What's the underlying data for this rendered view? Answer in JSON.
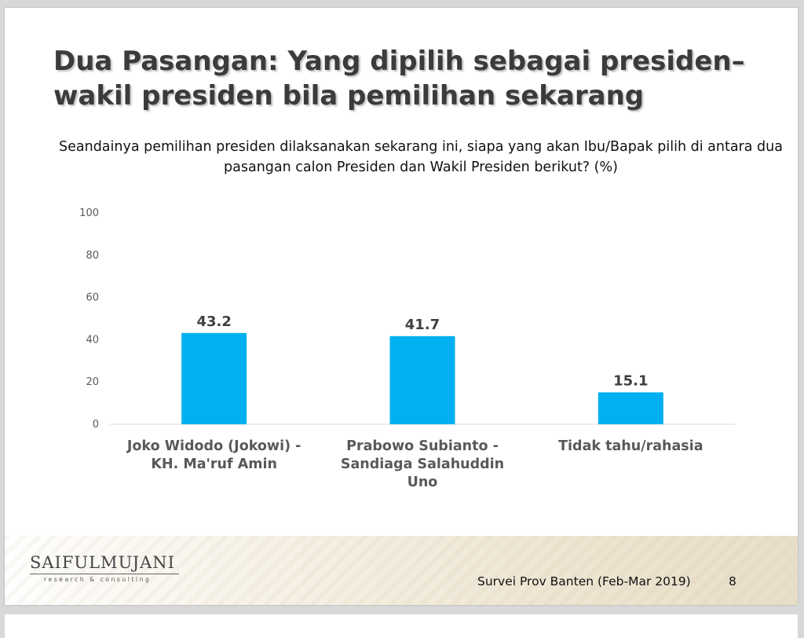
{
  "slide": {
    "title": "Dua Pasangan: Yang dipilih sebagai presiden–wakil presiden bila pemilihan sekarang",
    "question": "Seandainya pemilihan presiden dilaksanakan sekarang ini, siapa yang akan Ibu/Bapak pilih di antara dua pasangan calon Presiden dan Wakil Presiden berikut? (%)",
    "logo_main": "SAIFULMUJANI",
    "logo_sub": "research & consulting",
    "source": "Survei Prov Banten (Feb-Mar 2019)",
    "page_number": "8"
  },
  "chart_data": {
    "type": "bar",
    "title": "",
    "xlabel": "",
    "ylabel": "",
    "ylim": [
      0,
      100
    ],
    "yticks": [
      0,
      20,
      40,
      60,
      80,
      100
    ],
    "categories": [
      [
        "Joko Widodo (Jokowi) -",
        "KH. Ma'ruf Amin"
      ],
      [
        "Prabowo Subianto -",
        "Sandiaga Salahuddin",
        "Uno"
      ],
      [
        "Tidak tahu/rahasia"
      ]
    ],
    "values": [
      43.2,
      41.7,
      15.1
    ],
    "value_labels": [
      "43.2",
      "41.7",
      "15.1"
    ],
    "bar_color": "#00B0F0",
    "grid": false,
    "legend": "none"
  }
}
